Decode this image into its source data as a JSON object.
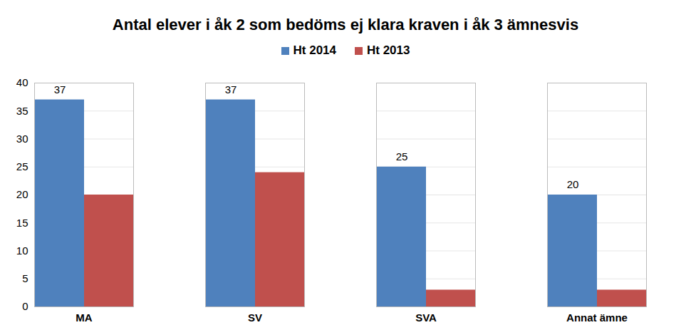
{
  "chart_data": {
    "type": "bar",
    "title": "Antal elever i åk 2 som bedöms ej klara kraven i åk 3 ämnesvis",
    "categories": [
      "MA",
      "SV",
      "SVA",
      "Annat ämne"
    ],
    "series": [
      {
        "name": "Ht 2014",
        "color": "#4f81bd",
        "values": [
          37,
          37,
          25,
          20
        ],
        "data_labels": true
      },
      {
        "name": "Ht 2013",
        "color": "#c0504d",
        "values": [
          20,
          24,
          3,
          3
        ]
      }
    ],
    "ylim": [
      0,
      40
    ],
    "yticks": [
      0,
      5,
      10,
      15,
      20,
      25,
      30,
      35,
      40
    ],
    "grid": true,
    "legend": "top"
  }
}
